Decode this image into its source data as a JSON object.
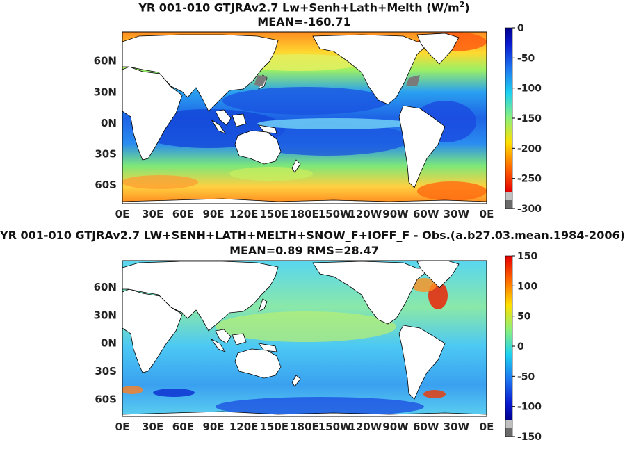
{
  "figure": {
    "panels": [
      {
        "id": "top",
        "title_main": "YR 001-010 GTJRAv2.7 Lw+Senh+Lath+Melth (W/m",
        "title_sup": "2",
        "title_tail": ")",
        "subtitle": "MEAN=-160.71",
        "colorbar_ticks": [
          "0",
          "-50",
          "-100",
          "-150",
          "-200",
          "-250",
          "-300"
        ]
      },
      {
        "id": "bottom",
        "title_main": "YR 001-010 GTJRAv2.7 LW+SENH+LATH+MELTH+SNOW_F+IOFF_F - Obs.(a.b27.03.mean.1984-2006)",
        "subtitle": "MEAN=0.89 RMS=28.47",
        "colorbar_ticks": [
          "150",
          "100",
          "50",
          "0",
          "-50",
          "-100",
          "-150"
        ]
      }
    ]
  },
  "chart_data": [
    {
      "type": "heatmap",
      "title": "YR 001-010 GTJRAv2.7 Lw+Senh+Lath+Melth (W/m2)",
      "subtitle": "MEAN=-160.71",
      "xticks": [
        "0E",
        "30E",
        "60E",
        "90E",
        "120E",
        "150E",
        "180E",
        "150W",
        "120W",
        "90W",
        "60W",
        "30W",
        "0E"
      ],
      "yticks": [
        "60N",
        "30N",
        "0N",
        "30S",
        "60S"
      ],
      "xlim": [
        0,
        360
      ],
      "ylim": [
        -78,
        88
      ],
      "colorbar": {
        "min": -300,
        "max": 0,
        "ticks": [
          0,
          -50,
          -100,
          -150,
          -200,
          -250,
          -300
        ]
      },
      "mean": -160.71
    },
    {
      "type": "heatmap",
      "title": "YR 001-010 GTJRAv2.7 LW+SENH+LATH+MELTH+SNOW_F+IOFF_F - Obs.(a.b27.03.mean.1984-2006)",
      "subtitle": "MEAN=0.89 RMS=28.47",
      "xticks": [
        "0E",
        "30E",
        "60E",
        "90E",
        "120E",
        "150E",
        "180E",
        "150W",
        "120W",
        "90W",
        "60W",
        "30W",
        "0E"
      ],
      "yticks": [
        "60N",
        "30N",
        "0N",
        "30S",
        "60S"
      ],
      "xlim": [
        0,
        360
      ],
      "ylim": [
        -78,
        88
      ],
      "colorbar": {
        "min": -150,
        "max": 150,
        "ticks": [
          150,
          100,
          50,
          0,
          -50,
          -100,
          -150
        ]
      },
      "mean": 0.89,
      "rms": 28.47
    }
  ]
}
